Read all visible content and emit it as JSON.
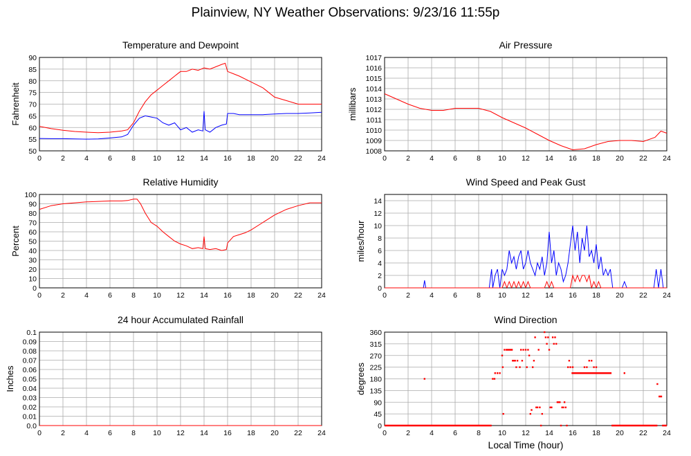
{
  "page": {
    "title": "Plainview, NY Weather Observations: 9/23/16 11:55p",
    "xlabel": "Local Time (hour)"
  },
  "colors": {
    "red": "#ff0000",
    "blue": "#0000ff",
    "grid": "#aaaaaa"
  },
  "chart_data": [
    {
      "id": "temp",
      "type": "line",
      "title": "Temperature and Dewpoint",
      "ylabel": "Fahrenheit",
      "xlim": [
        0,
        24
      ],
      "ylim": [
        50,
        90
      ],
      "xticks": [
        0,
        2,
        4,
        6,
        8,
        10,
        12,
        14,
        16,
        18,
        20,
        22,
        24
      ],
      "yticks": [
        50,
        55,
        60,
        65,
        70,
        75,
        80,
        85,
        90
      ],
      "series": [
        {
          "color": "red",
          "x": [
            0,
            1,
            2,
            3,
            4,
            5,
            6,
            7,
            7.5,
            8,
            8.5,
            9,
            9.5,
            10,
            10.5,
            11,
            11.5,
            12,
            12.5,
            13,
            13.5,
            14,
            14.5,
            15,
            15.5,
            15.8,
            16,
            16.5,
            17,
            18,
            19,
            20,
            21,
            22,
            23,
            24
          ],
          "y": [
            60.5,
            59.5,
            58.8,
            58.3,
            58,
            57.8,
            58,
            58.5,
            59,
            62,
            67,
            71,
            74,
            76,
            78,
            80,
            82,
            84,
            84,
            85,
            84.5,
            85.5,
            85,
            86,
            87,
            87.5,
            84,
            83,
            82,
            79.5,
            77,
            73,
            71.5,
            70,
            70,
            70
          ]
        },
        {
          "color": "blue",
          "x": [
            0,
            1,
            2,
            3,
            4,
            5,
            6,
            7,
            7.5,
            8,
            8.5,
            9,
            9.5,
            10,
            10.5,
            11,
            11.5,
            12,
            12.5,
            13,
            13.5,
            13.9,
            14,
            14.1,
            14.5,
            15,
            15.5,
            15.9,
            16,
            16.5,
            17,
            18,
            19,
            20,
            21,
            22,
            23,
            24
          ],
          "y": [
            55.3,
            55.2,
            55.2,
            55.1,
            55,
            55.1,
            55.5,
            56,
            57,
            61,
            64,
            65,
            64.5,
            64,
            62,
            61,
            62,
            59,
            60,
            58,
            59,
            58.5,
            67,
            59,
            58,
            60,
            61,
            61.5,
            66,
            66,
            65.5,
            65.5,
            65.5,
            65.8,
            66,
            66,
            66.2,
            66.5
          ]
        }
      ]
    },
    {
      "id": "pressure",
      "type": "line",
      "title": "Air Pressure",
      "ylabel": "millibars",
      "xlim": [
        0,
        24
      ],
      "ylim": [
        1008,
        1017
      ],
      "xticks": [
        0,
        2,
        4,
        6,
        8,
        10,
        12,
        14,
        16,
        18,
        20,
        22,
        24
      ],
      "yticks": [
        1008,
        1009,
        1010,
        1011,
        1012,
        1013,
        1014,
        1015,
        1016,
        1017
      ],
      "series": [
        {
          "color": "red",
          "x": [
            0,
            1,
            2,
            3,
            4,
            5,
            6,
            7,
            8,
            9,
            10,
            11,
            12,
            13,
            14,
            15,
            16,
            17,
            18,
            19,
            20,
            21,
            22,
            23,
            23.5,
            24
          ],
          "y": [
            1013.5,
            1013,
            1012.5,
            1012.1,
            1011.9,
            1011.9,
            1012.1,
            1012.1,
            1012.1,
            1011.8,
            1011.2,
            1010.7,
            1010.2,
            1009.6,
            1009.0,
            1008.5,
            1008.1,
            1008.2,
            1008.6,
            1008.9,
            1009.0,
            1009.0,
            1008.9,
            1009.3,
            1009.9,
            1009.7
          ]
        }
      ]
    },
    {
      "id": "humidity",
      "type": "line",
      "title": "Relative Humidity",
      "ylabel": "Percent",
      "xlim": [
        0,
        24
      ],
      "ylim": [
        0,
        100
      ],
      "xticks": [
        0,
        2,
        4,
        6,
        8,
        10,
        12,
        14,
        16,
        18,
        20,
        22,
        24
      ],
      "yticks": [
        0,
        10,
        20,
        30,
        40,
        50,
        60,
        70,
        80,
        90,
        100
      ],
      "series": [
        {
          "color": "red",
          "x": [
            0,
            1,
            2,
            3,
            4,
            5,
            6,
            7,
            7.5,
            8,
            8.3,
            8.6,
            9,
            9.5,
            10,
            10.5,
            11,
            11.5,
            12,
            12.5,
            13,
            13.5,
            13.9,
            14,
            14.1,
            14.5,
            15,
            15.5,
            15.9,
            16,
            16.5,
            17,
            17.5,
            18,
            19,
            20,
            21,
            22,
            23,
            24
          ],
          "y": [
            84,
            88,
            90,
            91,
            92,
            92.5,
            93,
            93,
            93.5,
            95,
            95,
            90,
            80,
            70,
            66,
            60,
            55,
            50,
            47,
            45,
            42,
            43,
            42,
            55,
            42,
            41,
            42,
            40,
            41,
            48,
            55,
            57,
            59,
            62,
            70,
            78,
            84,
            88,
            91,
            91
          ]
        }
      ]
    },
    {
      "id": "wind",
      "type": "line",
      "title": "Wind Speed and Peak Gust",
      "ylabel": "miles/hour",
      "xlim": [
        0,
        24
      ],
      "ylim": [
        0,
        15
      ],
      "xticks": [
        0,
        2,
        4,
        6,
        8,
        10,
        12,
        14,
        16,
        18,
        20,
        22,
        24
      ],
      "yticks": [
        0,
        2,
        4,
        6,
        8,
        10,
        12,
        14
      ],
      "series": [
        {
          "color": "blue",
          "x": [
            0,
            3.3,
            3.4,
            3.5,
            8.9,
            9.1,
            9.2,
            9.4,
            9.6,
            9.8,
            10,
            10.2,
            10.4,
            10.6,
            10.8,
            11,
            11.2,
            11.4,
            11.6,
            11.8,
            12,
            12.2,
            12.4,
            12.6,
            12.8,
            13,
            13.2,
            13.4,
            13.6,
            13.8,
            14,
            14.2,
            14.4,
            14.6,
            14.8,
            15,
            15.2,
            15.4,
            15.6,
            15.8,
            16,
            16.2,
            16.4,
            16.6,
            16.8,
            17,
            17.2,
            17.4,
            17.6,
            17.8,
            18,
            18.2,
            18.4,
            18.6,
            18.8,
            19,
            19.2,
            19.4,
            20.2,
            20.4,
            20.6,
            22.9,
            23.1,
            23.3,
            23.5,
            23.7,
            24
          ],
          "y": [
            0,
            0,
            1.2,
            0,
            0,
            3,
            0,
            2,
            3,
            0,
            3,
            2,
            3,
            6,
            4,
            5,
            3,
            5,
            6,
            3,
            4,
            6,
            4,
            3,
            2,
            4,
            3,
            5,
            2,
            4,
            9,
            4,
            6,
            2,
            4,
            3,
            1,
            2,
            4,
            7,
            10,
            6,
            9,
            4,
            8,
            6,
            10,
            5,
            6,
            4,
            7,
            3,
            5,
            2,
            3,
            2,
            3,
            0,
            0,
            1,
            0,
            0,
            3,
            0,
            3,
            0,
            0
          ]
        },
        {
          "color": "red",
          "x": [
            0,
            10,
            10.2,
            10.4,
            10.6,
            10.8,
            11,
            11.2,
            11.4,
            11.6,
            11.8,
            12,
            12.2,
            12.4,
            12.6,
            13.6,
            13.8,
            14,
            14.2,
            14.4,
            15.8,
            16,
            16.2,
            16.4,
            16.6,
            16.8,
            17,
            17.2,
            17.4,
            17.6,
            17.8,
            18,
            18.2,
            18.4,
            24
          ],
          "y": [
            0,
            0,
            1,
            0,
            1,
            0,
            1,
            0,
            1,
            0,
            1,
            0,
            1,
            0,
            0,
            0,
            1,
            0,
            1,
            0,
            0,
            2,
            1,
            2,
            1,
            2,
            2,
            1,
            2,
            0,
            1,
            0,
            1,
            0,
            0
          ]
        }
      ]
    },
    {
      "id": "rain",
      "type": "line",
      "title": "24 hour Accumulated Rainfall",
      "ylabel": "Inches",
      "xlim": [
        0,
        24
      ],
      "ylim": [
        0,
        0.1
      ],
      "xticks": [
        0,
        2,
        4,
        6,
        8,
        10,
        12,
        14,
        16,
        18,
        20,
        22,
        24
      ],
      "yticks": [
        "0.0",
        "0.01",
        "0.02",
        "0.03",
        "0.04",
        "0.05",
        "0.06",
        "0.07",
        "0.08",
        "0.09",
        "0.1"
      ],
      "series": [
        {
          "color": "red",
          "x": [
            0,
            24
          ],
          "y": [
            0,
            0
          ]
        }
      ]
    },
    {
      "id": "winddir",
      "type": "scatter",
      "title": "Wind Direction",
      "ylabel": "degrees",
      "xlim": [
        0,
        24
      ],
      "ylim": [
        0,
        360
      ],
      "xticks": [
        0,
        2,
        4,
        6,
        8,
        10,
        12,
        14,
        16,
        18,
        20,
        22,
        24
      ],
      "yticks": [
        0,
        45,
        90,
        135,
        180,
        225,
        270,
        315,
        360
      ],
      "zero_runs": [
        [
          0,
          9.1
        ],
        [
          19.3,
          23.2
        ],
        [
          23.6,
          24
        ]
      ],
      "run_segments": [
        {
          "x": [
            10.3,
            10.9
          ],
          "y": 292
        },
        {
          "x": [
            15.9,
            19.3
          ],
          "y": 202
        },
        {
          "x": [
            23.3,
            23.6
          ],
          "y": 112
        }
      ],
      "points": [
        [
          3.4,
          180
        ],
        [
          9.2,
          180
        ],
        [
          9.35,
          180
        ],
        [
          9.4,
          202
        ],
        [
          9.6,
          202
        ],
        [
          9.8,
          202
        ],
        [
          10,
          270
        ],
        [
          10.05,
          225
        ],
        [
          10.1,
          45
        ],
        [
          10.2,
          292
        ],
        [
          10.9,
          250
        ],
        [
          11,
          250
        ],
        [
          11.1,
          250
        ],
        [
          11.2,
          225
        ],
        [
          11.3,
          250
        ],
        [
          11.5,
          225
        ],
        [
          11.6,
          292
        ],
        [
          11.7,
          250
        ],
        [
          11.8,
          292
        ],
        [
          12,
          292
        ],
        [
          12.1,
          225
        ],
        [
          12.2,
          292
        ],
        [
          12.3,
          270
        ],
        [
          12.4,
          45
        ],
        [
          12.5,
          60
        ],
        [
          12.6,
          225
        ],
        [
          12.7,
          250
        ],
        [
          12.8,
          340
        ],
        [
          12.9,
          70
        ],
        [
          13,
          70
        ],
        [
          13.1,
          292
        ],
        [
          13.2,
          70
        ],
        [
          13.3,
          0
        ],
        [
          13.4,
          45
        ],
        [
          13.6,
          360
        ],
        [
          13.7,
          340
        ],
        [
          13.8,
          315
        ],
        [
          13.9,
          340
        ],
        [
          14,
          292
        ],
        [
          14.1,
          70
        ],
        [
          14.2,
          70
        ],
        [
          14.3,
          340
        ],
        [
          14.4,
          315
        ],
        [
          14.5,
          340
        ],
        [
          14.6,
          315
        ],
        [
          14.7,
          90
        ],
        [
          14.8,
          90
        ],
        [
          14.9,
          90
        ],
        [
          15,
          0
        ],
        [
          15.1,
          70
        ],
        [
          15.2,
          70
        ],
        [
          15.3,
          90
        ],
        [
          15.4,
          70
        ],
        [
          15.5,
          0
        ],
        [
          15.6,
          225
        ],
        [
          15.7,
          250
        ],
        [
          15.8,
          225
        ],
        [
          16,
          225
        ],
        [
          17,
          225
        ],
        [
          17.2,
          225
        ],
        [
          17.4,
          250
        ],
        [
          17.6,
          250
        ],
        [
          17.8,
          225
        ],
        [
          18,
          225
        ],
        [
          20.4,
          202
        ],
        [
          23.2,
          160
        ]
      ]
    }
  ]
}
